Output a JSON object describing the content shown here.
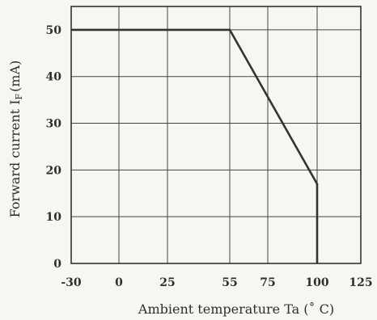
{
  "chart_data": {
    "type": "line",
    "x_ticks": [
      "-30",
      "0",
      "25",
      "55",
      "75",
      "100",
      "125"
    ],
    "y_ticks": [
      "0",
      "10",
      "20",
      "30",
      "40",
      "50"
    ],
    "xlabel": "Ambient temperature Ta (˚ C)",
    "ylabel_main": "Forward current I",
    "ylabel_sub": "F",
    "ylabel_unit": "(mA)",
    "xlim": [
      -30,
      125
    ],
    "ylim": [
      0,
      55
    ],
    "series": [
      {
        "x": [
          -30,
          55,
          100,
          100
        ],
        "y": [
          50,
          50,
          17,
          0
        ]
      }
    ],
    "grid": true
  }
}
